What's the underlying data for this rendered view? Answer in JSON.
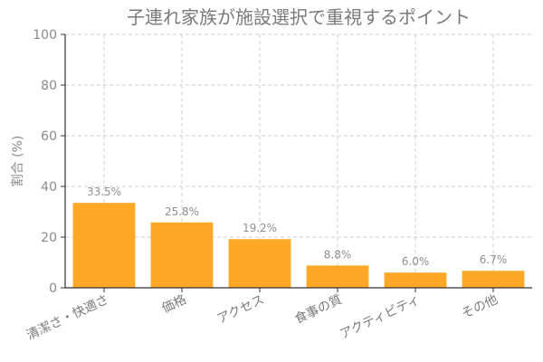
{
  "chart_data": {
    "type": "bar",
    "title": "子連れ家族が施設選択で重視するポイント",
    "ylabel": "割合 (%)",
    "xlabel": "",
    "categories": [
      "清潔さ・快適さ",
      "価格",
      "アクセス",
      "食事の質",
      "アクティビティ",
      "その他"
    ],
    "values": [
      33.5,
      25.8,
      19.2,
      8.8,
      6.0,
      6.7
    ],
    "value_labels": [
      "33.5%",
      "25.8%",
      "19.2%",
      "8.8%",
      "6.0%",
      "6.7%"
    ],
    "ylim": [
      0,
      100
    ],
    "yticks": [
      0,
      20,
      40,
      60,
      80,
      100
    ],
    "grid": true,
    "bar_color": "#FFA726"
  }
}
